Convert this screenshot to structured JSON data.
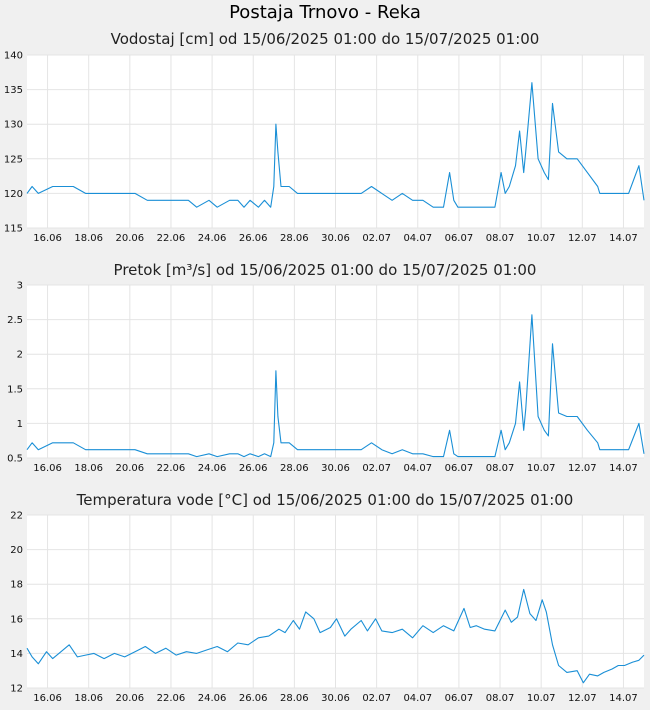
{
  "page": {
    "title": "Postaja Trnovo - Reka"
  },
  "chart_data": [
    {
      "type": "line",
      "title": "Vodostaj [cm] od 15/06/2025 01:00 do 15/07/2025 01:00",
      "x_tick_labels": [
        "16.06",
        "18.06",
        "20.06",
        "22.06",
        "24.06",
        "26.06",
        "28.06",
        "30.06",
        "02.07",
        "04.07",
        "06.07",
        "08.07",
        "10.07",
        "12.07",
        "14.07"
      ],
      "x_range_days": [
        14.75,
        44.75
      ],
      "ylim": [
        115,
        140
      ],
      "y_ticks": [
        115,
        120,
        125,
        130,
        135,
        140
      ],
      "y_tick_labels": [
        "115",
        "120",
        "125",
        "130",
        "135",
        "140"
      ],
      "grid": true,
      "series": [
        {
          "color": "#1a8fd6",
          "x": [
            14.75,
            15.0,
            15.3,
            16.0,
            16.3,
            17.0,
            17.6,
            18.0,
            18.5,
            19.0,
            19.6,
            20.0,
            20.6,
            21.0,
            22.0,
            22.6,
            23.0,
            23.6,
            24.0,
            24.6,
            25.0,
            25.3,
            25.6,
            26.0,
            26.3,
            26.6,
            26.75,
            26.85,
            26.95,
            27.1,
            27.5,
            27.9,
            28.0,
            28.5,
            29.0,
            29.5,
            30.0,
            30.5,
            31.0,
            31.5,
            32.0,
            32.5,
            33.0,
            33.5,
            34.0,
            34.5,
            35.0,
            35.3,
            35.5,
            35.7,
            36.0,
            36.5,
            37.0,
            37.5,
            37.8,
            38.0,
            38.2,
            38.5,
            38.7,
            38.9,
            39.0,
            39.3,
            39.6,
            39.9,
            40.1,
            40.3,
            40.6,
            41.0,
            41.5,
            42.0,
            42.5,
            42.6,
            42.8,
            43.0,
            43.5,
            44.0,
            44.5,
            44.75
          ],
          "y": [
            120,
            121,
            120,
            121,
            121,
            121,
            120,
            120,
            120,
            120,
            120,
            120,
            119,
            119,
            119,
            119,
            118,
            119,
            118,
            119,
            119,
            118,
            119,
            118,
            119,
            118,
            121,
            130,
            126,
            121,
            121,
            120,
            120,
            120,
            120,
            120,
            120,
            120,
            120,
            121,
            120,
            119,
            120,
            119,
            119,
            118,
            118,
            123,
            119,
            118,
            118,
            118,
            118,
            118,
            123,
            120,
            121,
            124,
            129,
            123,
            126,
            136,
            125,
            123,
            122,
            133,
            126,
            125,
            125,
            123,
            121,
            120,
            120,
            120,
            120,
            120,
            124,
            119
          ]
        }
      ]
    },
    {
      "type": "line",
      "title": "Pretok [m³/s] od 15/06/2025 01:00 do 15/07/2025 01:00",
      "x_tick_labels": [
        "16.06",
        "18.06",
        "20.06",
        "22.06",
        "24.06",
        "26.06",
        "28.06",
        "30.06",
        "02.07",
        "04.07",
        "06.07",
        "08.07",
        "10.07",
        "12.07",
        "14.07"
      ],
      "x_range_days": [
        14.75,
        44.75
      ],
      "ylim": [
        0.5,
        3
      ],
      "y_ticks": [
        0.5,
        1,
        1.5,
        2,
        2.5,
        3
      ],
      "y_tick_labels": [
        "0.5",
        "1",
        "1.5",
        "2",
        "2.5",
        "3"
      ],
      "grid": true,
      "series": [
        {
          "color": "#1a8fd6",
          "x": [
            14.75,
            15.0,
            15.3,
            16.0,
            16.3,
            17.0,
            17.6,
            18.0,
            18.5,
            19.0,
            19.6,
            20.0,
            20.6,
            21.0,
            22.0,
            22.6,
            23.0,
            23.6,
            24.0,
            24.6,
            25.0,
            25.3,
            25.6,
            26.0,
            26.3,
            26.6,
            26.75,
            26.85,
            26.95,
            27.1,
            27.5,
            27.9,
            28.0,
            28.5,
            29.0,
            29.5,
            30.0,
            30.5,
            31.0,
            31.5,
            32.0,
            32.5,
            33.0,
            33.5,
            34.0,
            34.5,
            35.0,
            35.3,
            35.5,
            35.7,
            36.0,
            36.5,
            37.0,
            37.5,
            37.8,
            38.0,
            38.2,
            38.5,
            38.7,
            38.9,
            39.0,
            39.3,
            39.6,
            39.9,
            40.1,
            40.3,
            40.6,
            41.0,
            41.5,
            42.0,
            42.5,
            42.6,
            42.8,
            43.0,
            43.5,
            44.0,
            44.5,
            44.75
          ],
          "y": [
            0.62,
            0.72,
            0.62,
            0.72,
            0.72,
            0.72,
            0.62,
            0.62,
            0.62,
            0.62,
            0.62,
            0.62,
            0.56,
            0.56,
            0.56,
            0.56,
            0.52,
            0.56,
            0.52,
            0.56,
            0.56,
            0.52,
            0.56,
            0.52,
            0.56,
            0.52,
            0.72,
            1.76,
            1.1,
            0.72,
            0.72,
            0.62,
            0.62,
            0.62,
            0.62,
            0.62,
            0.62,
            0.62,
            0.62,
            0.72,
            0.62,
            0.56,
            0.62,
            0.56,
            0.56,
            0.52,
            0.52,
            0.9,
            0.56,
            0.52,
            0.52,
            0.52,
            0.52,
            0.52,
            0.9,
            0.62,
            0.72,
            1.0,
            1.6,
            0.9,
            1.2,
            2.57,
            1.1,
            0.9,
            0.82,
            2.15,
            1.15,
            1.1,
            1.1,
            0.9,
            0.72,
            0.62,
            0.62,
            0.62,
            0.62,
            0.62,
            1.0,
            0.56
          ]
        }
      ]
    },
    {
      "type": "line",
      "title": "Temperatura vode [°C] od 15/06/2025 01:00 do 15/07/2025 01:00",
      "x_tick_labels": [
        "16.06",
        "18.06",
        "20.06",
        "22.06",
        "24.06",
        "26.06",
        "28.06",
        "30.06",
        "02.07",
        "04.07",
        "06.07",
        "08.07",
        "10.07",
        "12.07",
        "14.07"
      ],
      "x_range_days": [
        14.75,
        44.75
      ],
      "ylim": [
        12,
        22
      ],
      "y_ticks": [
        12,
        14,
        16,
        18,
        20,
        22
      ],
      "y_tick_labels": [
        "12",
        "14",
        "16",
        "18",
        "20",
        "22"
      ],
      "grid": true,
      "series": [
        {
          "color": "#1a8fd6",
          "x": [
            14.75,
            15.0,
            15.3,
            15.7,
            16.0,
            16.3,
            16.8,
            17.2,
            17.6,
            18.0,
            18.5,
            19.0,
            19.5,
            20.0,
            20.5,
            21.0,
            21.5,
            22.0,
            22.5,
            23.0,
            23.5,
            24.0,
            24.5,
            25.0,
            25.5,
            26.0,
            26.5,
            27.0,
            27.3,
            27.7,
            28.0,
            28.3,
            28.7,
            29.0,
            29.5,
            29.8,
            30.2,
            30.5,
            31.0,
            31.3,
            31.7,
            32.0,
            32.5,
            33.0,
            33.5,
            34.0,
            34.5,
            35.0,
            35.5,
            36.0,
            36.3,
            36.6,
            37.0,
            37.5,
            38.0,
            38.3,
            38.6,
            38.9,
            39.2,
            39.5,
            39.8,
            40.0,
            40.3,
            40.6,
            41.0,
            41.5,
            41.8,
            42.1,
            42.5,
            42.8,
            43.2,
            43.5,
            43.8,
            44.2,
            44.5,
            44.75
          ],
          "y": [
            14.3,
            13.8,
            13.4,
            14.1,
            13.7,
            14.0,
            14.5,
            13.8,
            13.9,
            14.0,
            13.7,
            14.0,
            13.8,
            14.1,
            14.4,
            14.0,
            14.3,
            13.9,
            14.1,
            14.0,
            14.2,
            14.4,
            14.1,
            14.6,
            14.5,
            14.9,
            15.0,
            15.4,
            15.2,
            15.9,
            15.4,
            16.4,
            16.0,
            15.2,
            15.5,
            16.0,
            15.0,
            15.4,
            15.9,
            15.3,
            16.0,
            15.3,
            15.2,
            15.4,
            14.9,
            15.6,
            15.2,
            15.6,
            15.3,
            16.6,
            15.5,
            15.6,
            15.4,
            15.3,
            16.5,
            15.8,
            16.1,
            17.7,
            16.3,
            15.9,
            17.1,
            16.4,
            14.5,
            13.3,
            12.9,
            13.0,
            12.3,
            12.8,
            12.7,
            12.9,
            13.1,
            13.3,
            13.3,
            13.5,
            13.6,
            13.9
          ]
        }
      ]
    }
  ]
}
